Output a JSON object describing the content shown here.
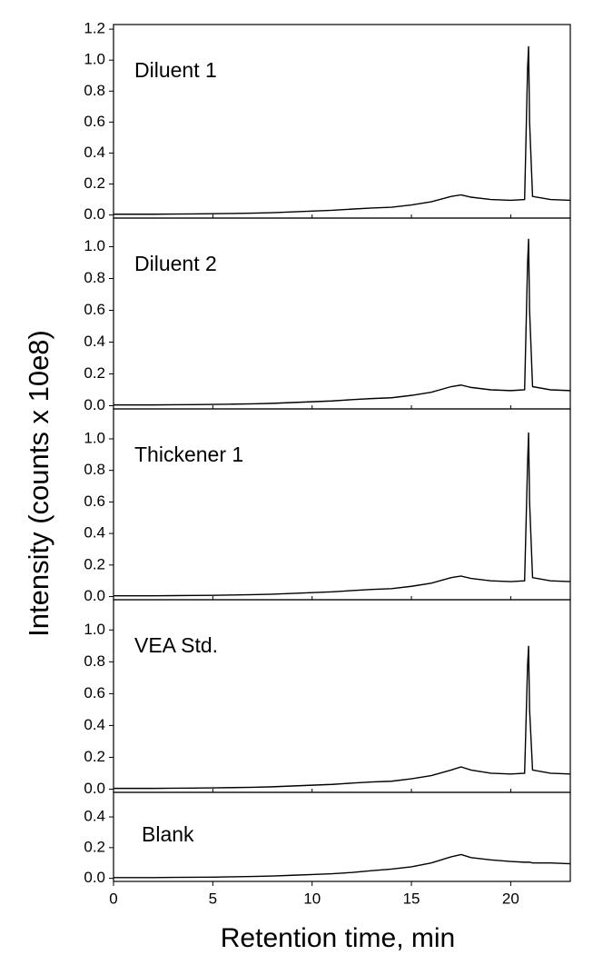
{
  "ylabel": "Intensity (counts x 10e8)",
  "xlabel": "Retention time, min",
  "chart_data": [
    {
      "type": "line",
      "title": "Diluent 1",
      "color": "#000000",
      "xlim": [
        0,
        23
      ],
      "ylim": [
        -0.02,
        1.23
      ],
      "yticks": [
        {
          "value": 0,
          "label": "0.0"
        },
        0.2,
        0.4,
        0.6,
        0.8,
        {
          "value": 1,
          "label": "1.0"
        },
        1.2
      ],
      "x": [
        0,
        1,
        2,
        3,
        4,
        5,
        6,
        7,
        8,
        9,
        10,
        11,
        12,
        13,
        14,
        15,
        16,
        17,
        17.5,
        18,
        19,
        20,
        20.7,
        20.85,
        20.9,
        20.95,
        21.1,
        22,
        23
      ],
      "values": [
        0.005,
        0.005,
        0.005,
        0.006,
        0.007,
        0.008,
        0.01,
        0.012,
        0.015,
        0.02,
        0.025,
        0.03,
        0.038,
        0.045,
        0.05,
        0.065,
        0.085,
        0.12,
        0.13,
        0.115,
        0.1,
        0.095,
        0.1,
        0.95,
        1.09,
        0.6,
        0.12,
        0.1,
        0.095
      ]
    },
    {
      "type": "line",
      "title": "Diluent 2",
      "color": "#000000",
      "xlim": [
        0,
        23
      ],
      "ylim": [
        -0.02,
        1.18
      ],
      "yticks": [
        {
          "value": 0,
          "label": "0.0"
        },
        0.2,
        0.4,
        0.6,
        0.8,
        {
          "value": 1,
          "label": "1.0"
        }
      ],
      "x": [
        0,
        1,
        2,
        3,
        4,
        5,
        6,
        7,
        8,
        9,
        10,
        11,
        12,
        13,
        14,
        15,
        16,
        17,
        17.5,
        18,
        19,
        20,
        20.7,
        20.85,
        20.9,
        20.95,
        21.1,
        22,
        23
      ],
      "values": [
        0.005,
        0.005,
        0.005,
        0.006,
        0.007,
        0.008,
        0.01,
        0.012,
        0.015,
        0.02,
        0.025,
        0.03,
        0.038,
        0.045,
        0.05,
        0.065,
        0.085,
        0.12,
        0.13,
        0.115,
        0.1,
        0.095,
        0.1,
        0.9,
        1.05,
        0.6,
        0.12,
        0.1,
        0.095
      ]
    },
    {
      "type": "line",
      "title": "Thickener 1",
      "color": "#000000",
      "xlim": [
        0,
        23
      ],
      "ylim": [
        -0.02,
        1.19
      ],
      "yticks": [
        {
          "value": 0,
          "label": "0.0"
        },
        0.2,
        0.4,
        0.6,
        0.8,
        {
          "value": 1,
          "label": "1.0"
        }
      ],
      "x": [
        0,
        1,
        2,
        3,
        4,
        5,
        6,
        7,
        8,
        9,
        10,
        11,
        12,
        13,
        14,
        15,
        16,
        17,
        17.5,
        18,
        19,
        20,
        20.7,
        20.85,
        20.9,
        20.95,
        21.1,
        22,
        23
      ],
      "values": [
        0.005,
        0.005,
        0.005,
        0.006,
        0.007,
        0.008,
        0.01,
        0.012,
        0.015,
        0.02,
        0.025,
        0.03,
        0.038,
        0.045,
        0.05,
        0.065,
        0.085,
        0.12,
        0.13,
        0.115,
        0.1,
        0.095,
        0.1,
        0.85,
        1.04,
        0.6,
        0.12,
        0.1,
        0.095
      ]
    },
    {
      "type": "line",
      "title": "VEA Std.",
      "color": "#000000",
      "xlim": [
        0,
        23
      ],
      "ylim": [
        -0.02,
        1.19
      ],
      "yticks": [
        {
          "value": 0,
          "label": "0.0"
        },
        0.2,
        0.4,
        0.6,
        0.8,
        {
          "value": 1,
          "label": "1.0"
        }
      ],
      "x": [
        0,
        1,
        2,
        3,
        4,
        5,
        6,
        7,
        8,
        9,
        10,
        11,
        12,
        13,
        14,
        15,
        16,
        17,
        17.5,
        18,
        19,
        20,
        20.7,
        20.85,
        20.9,
        20.95,
        21.1,
        22,
        23
      ],
      "values": [
        0.005,
        0.005,
        0.005,
        0.006,
        0.007,
        0.008,
        0.01,
        0.012,
        0.015,
        0.02,
        0.025,
        0.03,
        0.038,
        0.045,
        0.05,
        0.065,
        0.085,
        0.12,
        0.14,
        0.12,
        0.1,
        0.095,
        0.1,
        0.78,
        0.9,
        0.5,
        0.12,
        0.1,
        0.095
      ]
    },
    {
      "type": "line",
      "title": "Blank",
      "color": "#000000",
      "xlim": [
        0,
        23
      ],
      "ylim": [
        -0.02,
        0.56
      ],
      "yticks": [
        {
          "value": 0,
          "label": "0.0"
        },
        0.2,
        0.4
      ],
      "xticks": [
        0,
        5,
        10,
        15,
        20
      ],
      "x": [
        0,
        1,
        2,
        3,
        4,
        5,
        6,
        7,
        8,
        9,
        10,
        11,
        12,
        13,
        14,
        15,
        16,
        17,
        17.5,
        18,
        19,
        20,
        20.7,
        20.85,
        20.9,
        20.95,
        21.1,
        22,
        23
      ],
      "values": [
        0.005,
        0.005,
        0.005,
        0.006,
        0.007,
        0.008,
        0.01,
        0.012,
        0.015,
        0.02,
        0.025,
        0.03,
        0.038,
        0.05,
        0.06,
        0.075,
        0.1,
        0.14,
        0.155,
        0.135,
        0.12,
        0.11,
        0.105,
        0.105,
        0.105,
        0.105,
        0.1,
        0.1,
        0.095
      ]
    }
  ]
}
